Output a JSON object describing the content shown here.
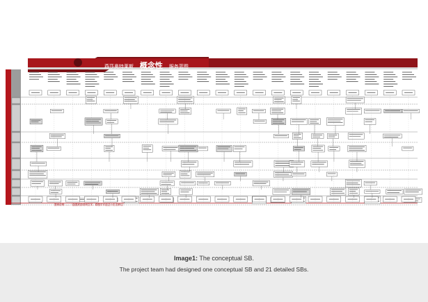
{
  "caption": {
    "label": "Image1:",
    "title": "The conceptual SB.",
    "description": "The project team had designed one conceptual SB and 21 detailed SBs."
  },
  "blueprint": {
    "banner_brand": "燕莎奥特莱斯",
    "banner_title": "概念性",
    "banner_subtitle": "服务蓝图",
    "footer_note": "图例说明 ……（蓝图底部说明文字，原图中字迹过小无法辨认）"
  },
  "colors": {
    "banner_red": "#a8161c",
    "banner_dark": "#6d0f12",
    "line_gray": "#8a8a8a",
    "caption_bg": "#ececec",
    "footer_red": "#b01e23"
  }
}
